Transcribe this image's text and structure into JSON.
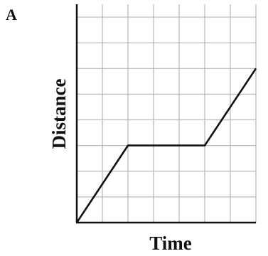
{
  "panel_label": "A",
  "colors": {
    "line": "#111111",
    "grid": "#b8b8b8",
    "axis": "#111111",
    "background": "#ffffff"
  },
  "chart_data": {
    "type": "line",
    "title": "",
    "xlabel": "Time",
    "ylabel": "Distance",
    "xlim": [
      0,
      7
    ],
    "ylim": [
      0,
      8.5
    ],
    "grid": true,
    "tick_labels_shown": false,
    "series": [
      {
        "points": [
          [
            0,
            0
          ],
          [
            2,
            3
          ],
          [
            5,
            3
          ],
          [
            7,
            6
          ]
        ]
      }
    ]
  }
}
